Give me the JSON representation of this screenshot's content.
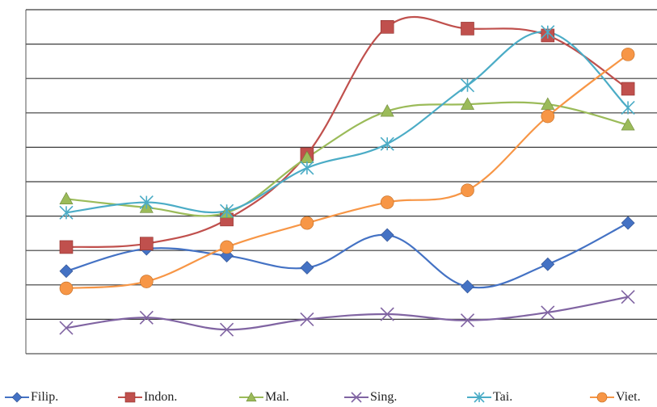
{
  "chart_data": {
    "type": "line",
    "title": "",
    "xlabel": "",
    "ylabel": "",
    "categories": [
      "",
      "",
      "",
      "",
      "",
      "",
      "",
      ""
    ],
    "ylim": [
      0,
      10
    ],
    "grid": true,
    "legend_position": "bottom",
    "series": [
      {
        "name": "Filip.",
        "color": "#4472C4",
        "marker": "diamond",
        "values": [
          2.4,
          3.05,
          2.85,
          2.5,
          3.45,
          1.95,
          2.6,
          3.8
        ]
      },
      {
        "name": "Indon.",
        "color": "#C0504D",
        "marker": "square",
        "values": [
          3.1,
          3.2,
          3.9,
          5.8,
          9.5,
          9.45,
          9.25,
          7.7
        ]
      },
      {
        "name": "Mal.",
        "color": "#9BBB59",
        "marker": "triangle",
        "values": [
          4.5,
          4.25,
          4.1,
          5.7,
          7.05,
          7.25,
          7.25,
          6.65
        ]
      },
      {
        "name": "Sing.",
        "color": "#8064A2",
        "marker": "x",
        "values": [
          0.75,
          1.05,
          0.7,
          1.0,
          1.15,
          0.97,
          1.2,
          1.65
        ]
      },
      {
        "name": "Tai.",
        "color": "#4BACC6",
        "marker": "star",
        "values": [
          4.1,
          4.4,
          4.15,
          5.4,
          6.1,
          7.8,
          9.35,
          7.15
        ]
      },
      {
        "name": "Viet.",
        "color": "#F79646",
        "marker": "circle",
        "values": [
          1.9,
          2.1,
          3.1,
          3.8,
          4.4,
          4.75,
          6.9,
          8.7
        ]
      }
    ]
  }
}
